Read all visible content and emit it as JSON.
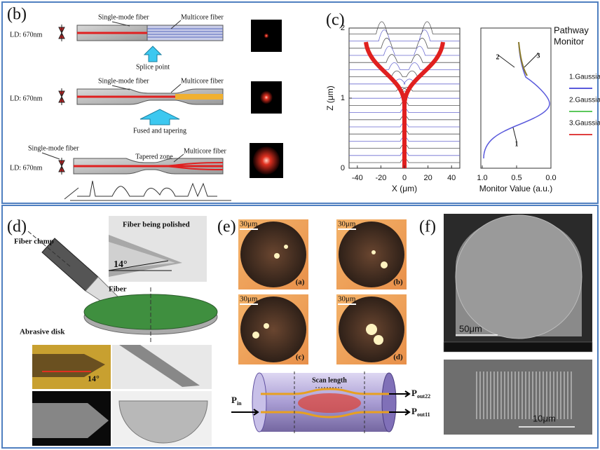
{
  "panel_b": {
    "label": "(b)",
    "rows": [
      {
        "source": "LD: 670nm",
        "left_fiber": "Single-mode fiber",
        "right_fiber": "Multicore fiber",
        "caption": "Splice point"
      },
      {
        "source": "LD: 670nm",
        "left_fiber": "Single-mode fiber",
        "right_fiber": "Multicore fiber",
        "caption": "Fused and tapering"
      },
      {
        "source": "LD: 670nm",
        "left_fiber": "Single-mode fiber",
        "right_fiber": "Multicore fiber",
        "middle": "Tapered zone"
      }
    ]
  },
  "panel_c": {
    "label": "(c)",
    "left_plot": {
      "y_label": "Z (μm)",
      "x_label": "X (μm)",
      "xticks": [
        -40,
        -20,
        0,
        20,
        40
      ],
      "yticks": [
        0,
        1,
        2
      ]
    },
    "right_plot": {
      "x_label": "Monitor Value (a.u.)",
      "xticks": [
        "1.0",
        "0.5",
        "0.0"
      ],
      "curve_labels": [
        "1",
        "2",
        "3"
      ]
    },
    "legend_title_lines": [
      "Pathway",
      "Monitor"
    ],
    "legend": [
      {
        "name": "1.Gaussian",
        "color": "#5a5adc"
      },
      {
        "name": "2.Gaussian",
        "color": "#5cc85c"
      },
      {
        "name": "3.Gaussian",
        "color": "#e04040"
      }
    ]
  },
  "panel_d": {
    "label": "(d)",
    "photo_title": "Fiber being polished",
    "angle_top": "14°",
    "clamp": "Fiber clamp",
    "fiber": "Fiber",
    "disk": "Abrasive disk",
    "angle_bottom": "14°"
  },
  "panel_e": {
    "label": "(e)",
    "images": [
      {
        "scale": "30μm",
        "tag": "(a)"
      },
      {
        "scale": "30μm",
        "tag": "(b)"
      },
      {
        "scale": "30μm",
        "tag": "(c)"
      },
      {
        "scale": "30μm",
        "tag": "(d)"
      }
    ],
    "scan_length": "Scan length",
    "input": {
      "symbol": "P",
      "sub": "in"
    },
    "outputs": [
      {
        "symbol": "P",
        "sub": "out22"
      },
      {
        "symbol": "P",
        "sub": "out11"
      }
    ]
  },
  "panel_f": {
    "label": "(f)",
    "scale_top": "50μm",
    "scale_bottom": "10μm"
  }
}
